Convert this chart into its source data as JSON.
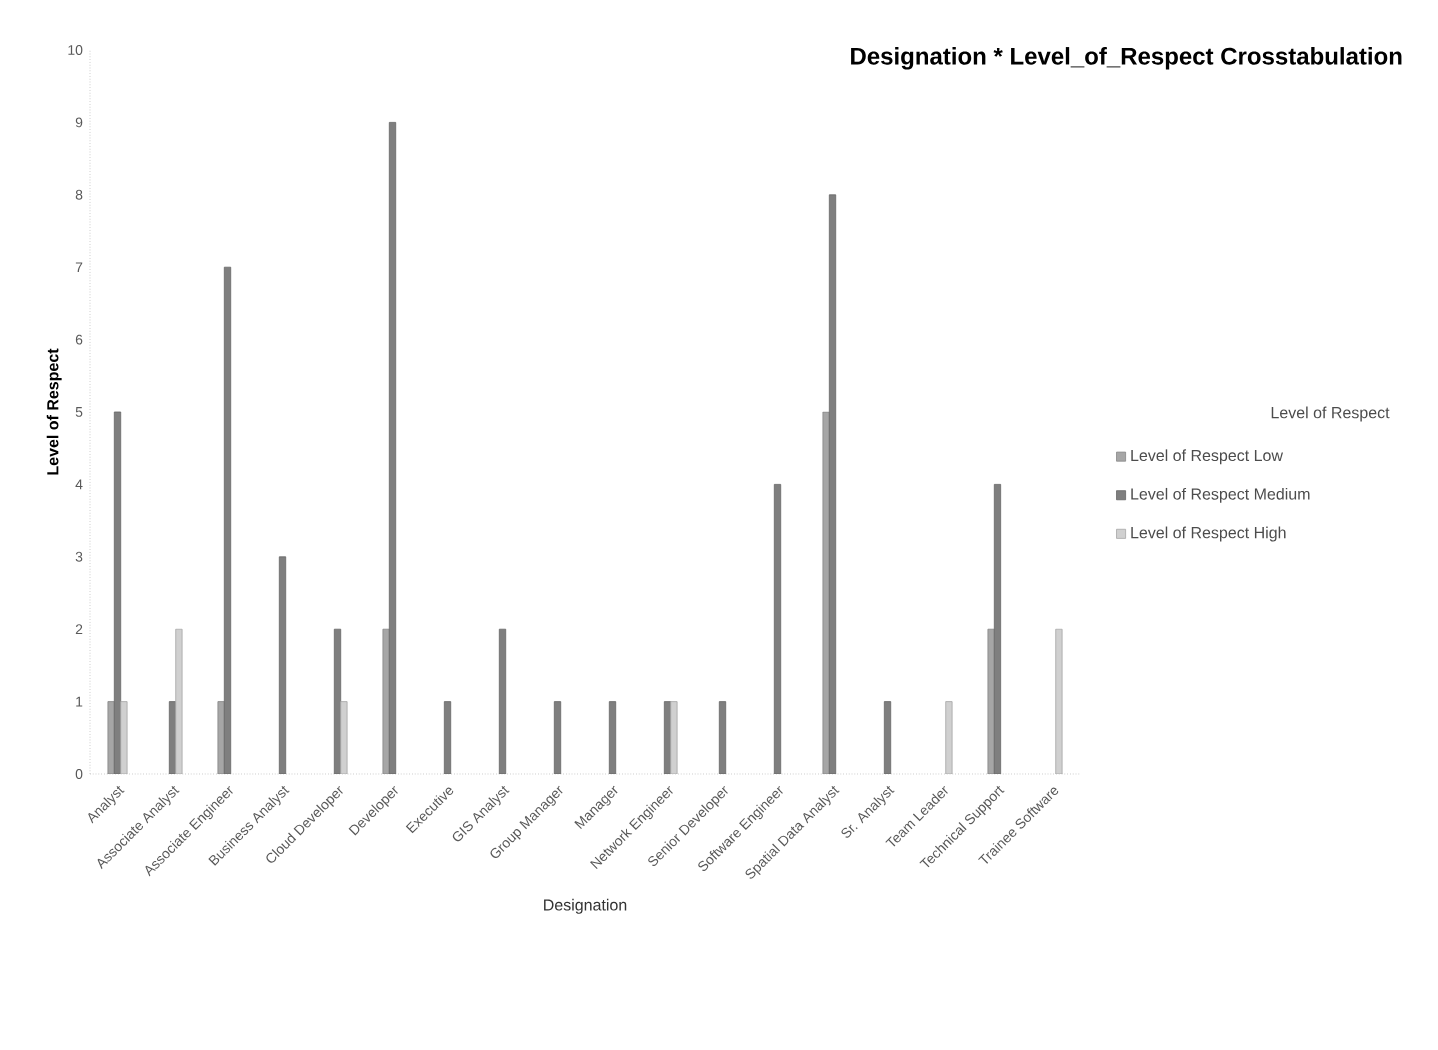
{
  "chart_data": {
    "type": "bar",
    "title": "Designation * Level_of_Respect Crosstabulation",
    "xlabel": "Designation",
    "ylabel": "Level of Respect",
    "legend_title": "Level of Respect",
    "categories": [
      "Analyst",
      "Associate Analyst",
      "Associate Engineer",
      "Business Analyst",
      "Cloud Developer",
      "Developer",
      "Executive",
      "GIS Analyst",
      "Group Manager",
      "Manager",
      "Network Engineer",
      "Senior Developer",
      "Software Engineer",
      "Spatial Data Analyst",
      "Sr. Analyst",
      "Team Leader",
      "Technical Support",
      "Trainee Software"
    ],
    "series": [
      {
        "name": "Level of Respect Low",
        "color": "#a6a6a6",
        "values": [
          1,
          null,
          1,
          null,
          null,
          2,
          null,
          null,
          null,
          null,
          null,
          null,
          null,
          5,
          null,
          null,
          2,
          null
        ]
      },
      {
        "name": "Level of Respect Medium",
        "color": "#7f7f7f",
        "values": [
          5,
          1,
          7,
          3,
          2,
          9,
          1,
          2,
          1,
          1,
          1,
          1,
          4,
          8,
          1,
          null,
          4,
          null
        ]
      },
      {
        "name": "Level of Respect High",
        "color": "#d0d0d0",
        "values": [
          1,
          2,
          null,
          null,
          1,
          null,
          null,
          null,
          null,
          null,
          1,
          null,
          null,
          null,
          null,
          1,
          null,
          2
        ]
      }
    ],
    "ylim": [
      0,
      10
    ],
    "yticks": [
      0,
      1,
      2,
      3,
      4,
      5,
      6,
      7,
      8,
      9,
      10
    ],
    "legend": "right"
  }
}
